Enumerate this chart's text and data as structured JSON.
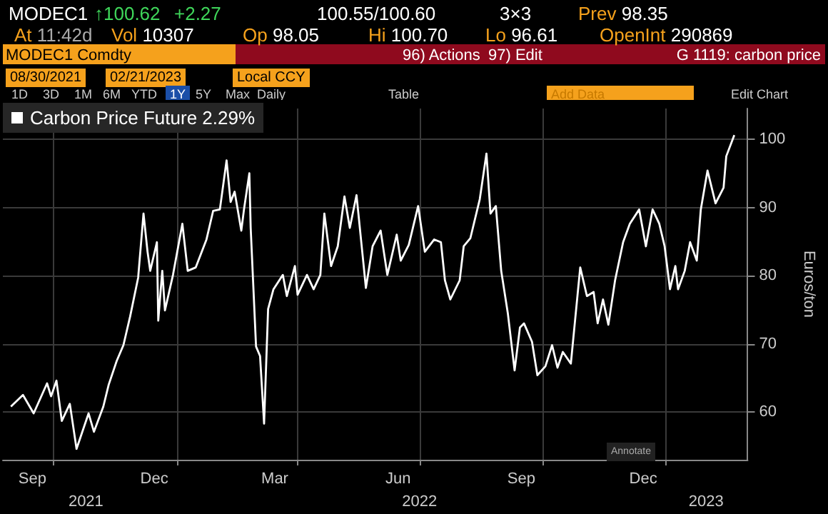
{
  "chart_data": {
    "type": "line",
    "annotations": [
      "MODEC1",
      "↑100.62",
      "+2.27",
      "100.55/100.60",
      "3×3",
      "Prev 98.35",
      "At 11:42d",
      "Vol 10307",
      "Op 98.05",
      "Hi 100.70",
      "Lo 96.61",
      "OpenInt 290869",
      "MODEC1 Comdty",
      "96) Actions",
      "97) Edit",
      "G 1119: carbon price",
      "08/30/2021",
      "02/21/2023",
      "Local CCY",
      "1D",
      "3D",
      "1M",
      "6M",
      "YTD",
      "1Y",
      "5Y",
      "Max",
      "Daily",
      "Table",
      "Add Data",
      "Edit Chart",
      "Annotate"
    ],
    "ylabel": "Euros/ton",
    "x": [
      "2021-08-30",
      "2021-09-08",
      "2021-09-16",
      "2021-09-26",
      "2021-09-29",
      "2021-10-03",
      "2021-10-07",
      "2021-10-13",
      "2021-10-18",
      "2021-10-27",
      "2021-10-31",
      "2021-11-07",
      "2021-11-11",
      "2021-11-17",
      "2021-11-22",
      "2021-11-27",
      "2021-12-03",
      "2021-12-07",
      "2021-12-10",
      "2021-12-12",
      "2021-12-17",
      "2021-12-18",
      "2021-12-21",
      "2021-12-23",
      "2021-12-29",
      "2022-01-05",
      "2022-01-09",
      "2022-01-15",
      "2022-01-23",
      "2022-01-28",
      "2022-02-02",
      "2022-02-07",
      "2022-02-10",
      "2022-02-13",
      "2022-02-18",
      "2022-02-20",
      "2022-02-24",
      "2022-02-25",
      "2022-03-01",
      "2022-03-04",
      "2022-03-07",
      "2022-03-10",
      "2022-03-14",
      "2022-03-21",
      "2022-03-24",
      "2022-03-30",
      "2022-04-01",
      "2022-04-08",
      "2022-04-13",
      "2022-04-18",
      "2022-04-21",
      "2022-04-26",
      "2022-05-01",
      "2022-05-06",
      "2022-05-10",
      "2022-05-15",
      "2022-05-22",
      "2022-05-27",
      "2022-06-02",
      "2022-06-07",
      "2022-06-14",
      "2022-06-17",
      "2022-06-23",
      "2022-06-30",
      "2022-07-05",
      "2022-07-12",
      "2022-07-17",
      "2022-07-20",
      "2022-07-24",
      "2022-07-31",
      "2022-08-03",
      "2022-08-08",
      "2022-08-15",
      "2022-08-20",
      "2022-08-23",
      "2022-08-27",
      "2022-08-31",
      "2022-09-05",
      "2022-09-10",
      "2022-09-14",
      "2022-09-17",
      "2022-09-23",
      "2022-09-27",
      "2022-10-03",
      "2022-10-08",
      "2022-10-12",
      "2022-10-16",
      "2022-10-22",
      "2022-10-27",
      "2022-10-29",
      "2022-11-03",
      "2022-11-08",
      "2022-11-11",
      "2022-11-15",
      "2022-11-19",
      "2022-11-24",
      "2022-11-30",
      "2022-12-05",
      "2022-12-12",
      "2022-12-17",
      "2022-12-22",
      "2022-12-27",
      "2022-12-31",
      "2023-01-04",
      "2023-01-08",
      "2023-01-10",
      "2023-01-15",
      "2023-01-19",
      "2023-01-24",
      "2023-01-27",
      "2023-02-01",
      "2023-02-07",
      "2023-02-13",
      "2023-02-15",
      "2023-02-21"
    ],
    "series": [
      {
        "name": "Carbon Price Future 2.29%",
        "color": "#ffffff",
        "values": [
          60.8,
          62.5,
          59.8,
          64.2,
          62.3,
          64.6,
          58.7,
          61.2,
          54.6,
          59.8,
          57.1,
          60.8,
          64.0,
          67.5,
          69.8,
          74.0,
          79.7,
          89.1,
          83.5,
          80.7,
          84.9,
          73.4,
          80.7,
          74.9,
          80.1,
          87.6,
          80.7,
          81.2,
          85.3,
          89.5,
          89.7,
          96.9,
          90.8,
          92.3,
          86.6,
          89.7,
          95.0,
          87.0,
          69.6,
          68.2,
          58.3,
          75.1,
          78.0,
          80.1,
          77.0,
          81.4,
          77.2,
          80.1,
          78.0,
          80.1,
          89.1,
          81.4,
          84.3,
          91.6,
          87.0,
          91.8,
          78.2,
          84.3,
          86.6,
          80.1,
          86.0,
          82.2,
          84.5,
          90.2,
          83.5,
          85.3,
          84.9,
          79.3,
          76.5,
          79.3,
          84.3,
          85.5,
          91.2,
          97.9,
          89.1,
          90.2,
          80.7,
          74.4,
          66.1,
          72.4,
          73.0,
          70.3,
          65.4,
          66.7,
          69.8,
          66.5,
          68.8,
          67.1,
          77.2,
          81.2,
          77.0,
          77.6,
          73.0,
          76.5,
          72.8,
          79.3,
          84.9,
          87.6,
          89.7,
          84.3,
          89.7,
          87.6,
          84.3,
          78.0,
          81.4,
          78.0,
          80.7,
          84.9,
          82.2,
          89.7,
          95.4,
          90.6,
          92.9,
          97.5,
          100.6
        ]
      }
    ],
    "xlim": [
      "2021-08-24",
      "2023-03-03"
    ],
    "xticks": [
      {
        "value": "2021-09-15",
        "label": "Sep"
      },
      {
        "value": "2021-10-01",
        "label": null
      },
      {
        "value": "2021-12-15",
        "label": "Dec"
      },
      {
        "value": "2022-01-01",
        "label": null
      },
      {
        "value": "2022-03-15",
        "label": "Mar"
      },
      {
        "value": "2022-04-01",
        "label": null
      },
      {
        "value": "2022-06-15",
        "label": "Jun"
      },
      {
        "value": "2022-07-01",
        "label": null
      },
      {
        "value": "2022-09-15",
        "label": "Sep"
      },
      {
        "value": "2022-10-01",
        "label": null
      },
      {
        "value": "2022-12-15",
        "label": "Dec"
      },
      {
        "value": "2023-01-01",
        "label": null
      }
    ],
    "x2lim": [
      "2021-08-24",
      "2023-03-03"
    ],
    "x2ticks": [
      {
        "value": "2021-10-25",
        "label": "2021"
      },
      {
        "value": "2022-07-01",
        "label": "2022"
      },
      {
        "value": "2023-01-31",
        "label": "2023"
      }
    ],
    "ylim": [
      53,
      104.5
    ],
    "yticks": [
      60,
      70,
      80,
      90,
      100
    ],
    "grid": true,
    "legend": "top left",
    "marker": "none",
    "line_style": "solid"
  }
}
